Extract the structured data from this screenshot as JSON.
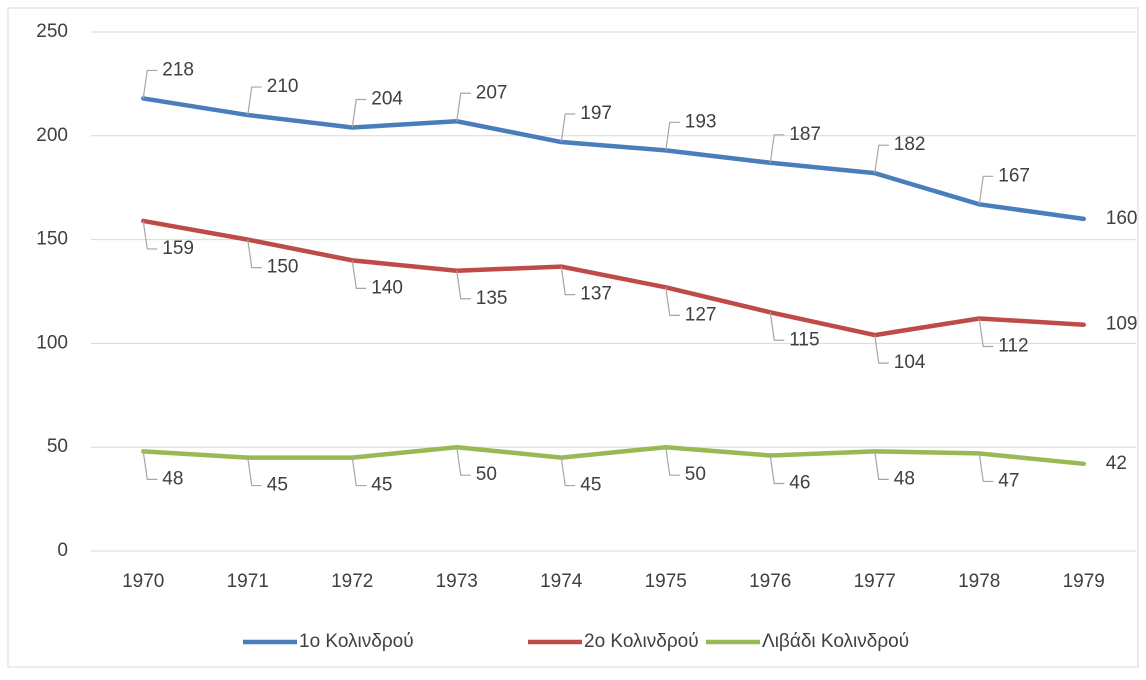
{
  "chart_data": {
    "type": "line",
    "categories": [
      "1970",
      "1971",
      "1972",
      "1973",
      "1974",
      "1975",
      "1976",
      "1977",
      "1978",
      "1979"
    ],
    "series": [
      {
        "name": "1ο Κολινδρού",
        "color": "#4a7ebb",
        "values": [
          218,
          210,
          204,
          207,
          197,
          193,
          187,
          182,
          167,
          160
        ]
      },
      {
        "name": "2ο Κολινδρού",
        "color": "#be4b48",
        "values": [
          159,
          150,
          140,
          135,
          137,
          127,
          115,
          104,
          112,
          109
        ]
      },
      {
        "name": "Λιβάδι Κολινδρού",
        "color": "#98b954",
        "values": [
          48,
          45,
          45,
          50,
          45,
          50,
          46,
          48,
          47,
          42
        ]
      }
    ],
    "ylim": [
      0,
      250
    ],
    "yticks": [
      0,
      50,
      100,
      150,
      200,
      250
    ],
    "grid": true,
    "legend": "bottom"
  }
}
